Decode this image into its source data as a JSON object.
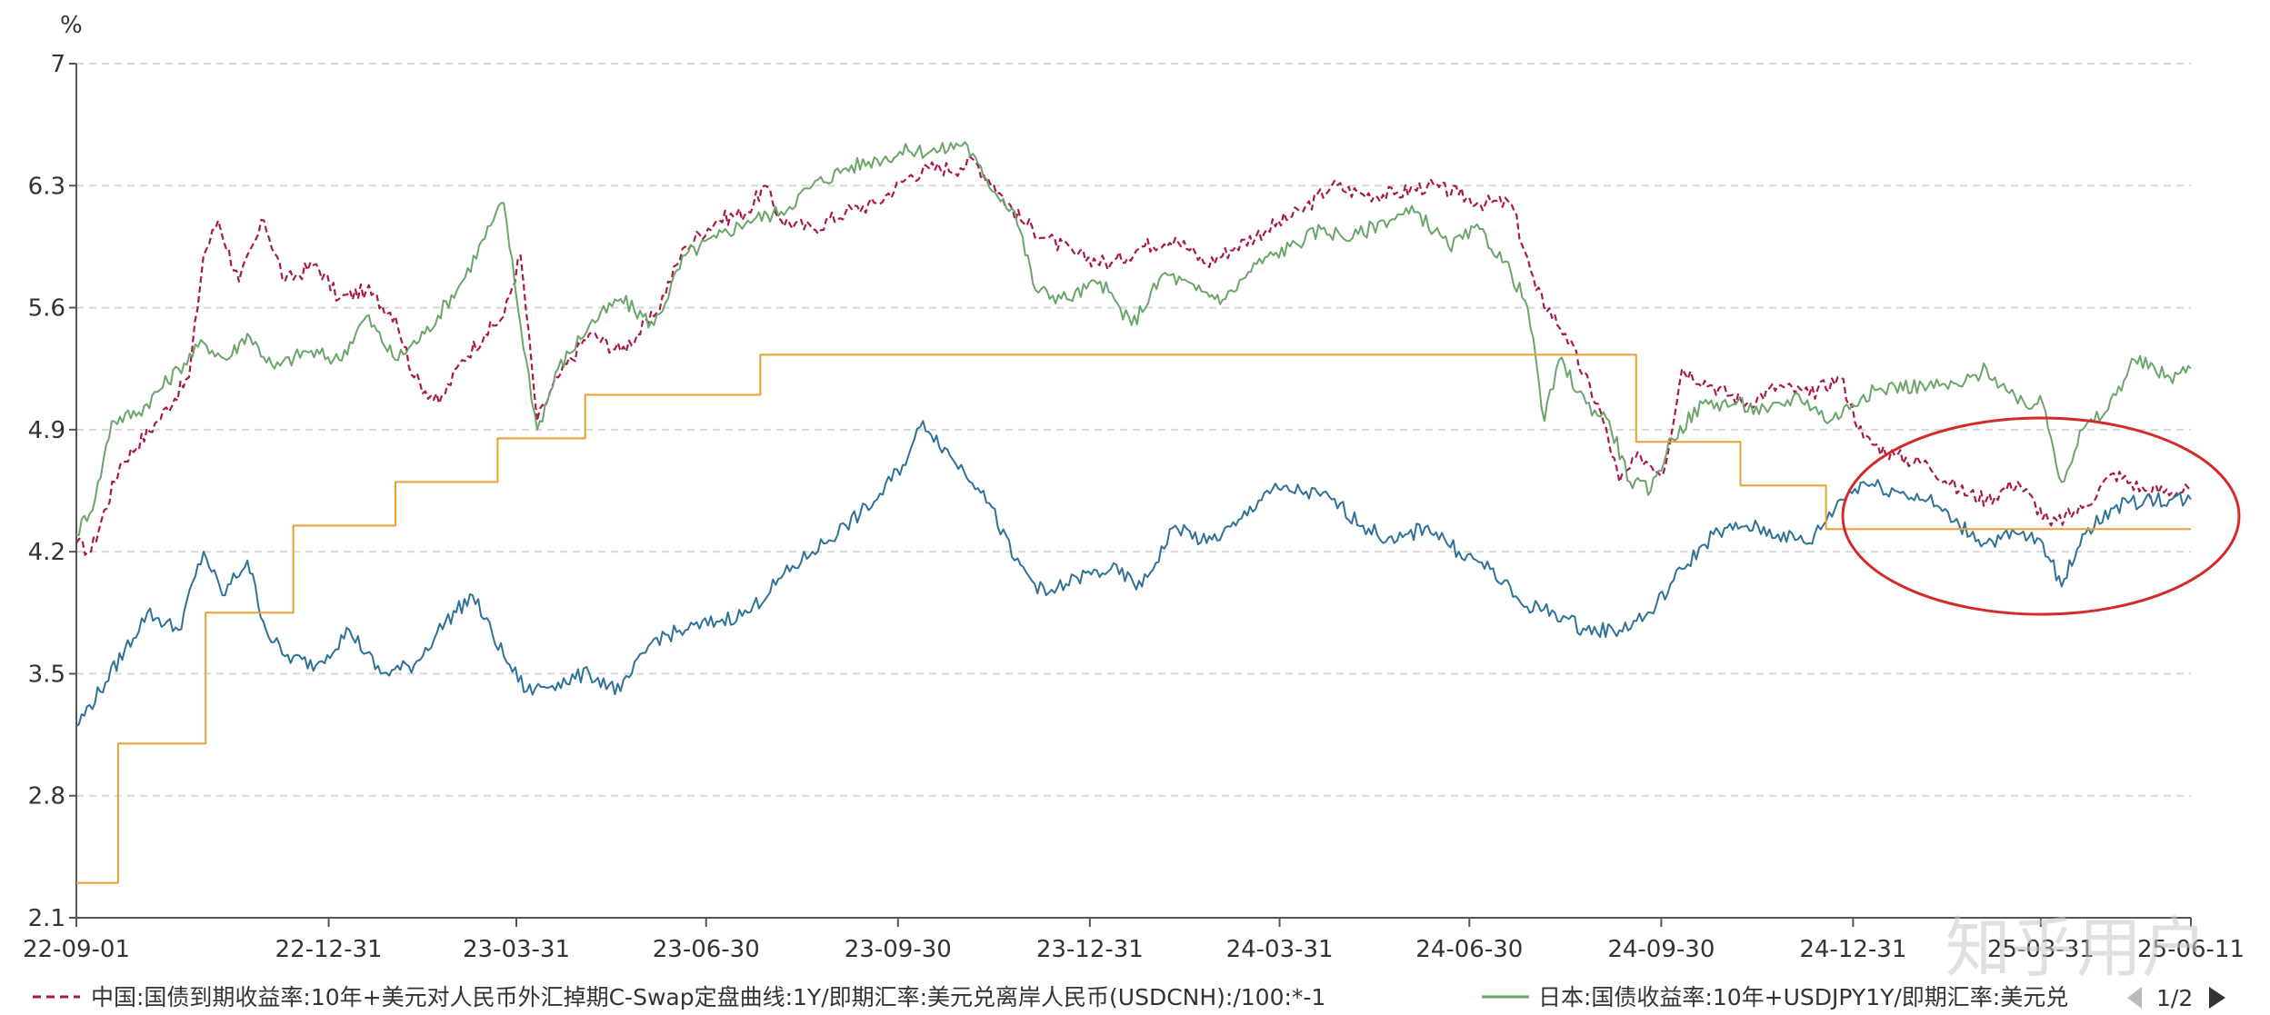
{
  "chart_data": {
    "type": "line",
    "unit": "%",
    "ylim": [
      2.1,
      7
    ],
    "y_ticks": [
      "2.1",
      "2.8",
      "3.5",
      "4.2",
      "4.9",
      "5.6",
      "6.3",
      "7"
    ],
    "x_ticks": [
      "22-09-01",
      "22-12-31",
      "23-03-31",
      "23-06-30",
      "23-09-30",
      "23-12-31",
      "24-03-31",
      "24-06-30",
      "24-09-30",
      "24-12-31",
      "25-03-31",
      "25-06-11"
    ],
    "x_range": [
      "2022-09-01",
      "2025-06-11"
    ],
    "grid": "horizontal dashed",
    "legend": {
      "placement": "bottom",
      "entries": [
        "中国:国债到期收益率:10年+美元对人民币外汇掉期C-Swap定盘曲线:1Y/即期汇率:美元兑离岸人民币(USDCNH):/100:*-1",
        "日本:国债收益率:10年+USDJPY1Y/即期汇率:美元兑"
      ],
      "page": "1/2"
    },
    "annotation": "red ellipse highlighting 2025-01 to 2025-06 region",
    "series": [
      {
        "name": "中国:国债到期收益率:10年+美元对人民币外汇掉期C-Swap定盘曲线:1Y/即期汇率:美元兑离岸人民币(USDCNH):/100:*-1",
        "color": "#a8194a",
        "style": "dashed",
        "points": [
          [
            "2022-09-01",
            4.25
          ],
          [
            "2022-09-08",
            4.2
          ],
          [
            "2022-09-22",
            4.7
          ],
          [
            "2022-10-10",
            4.95
          ],
          [
            "2022-10-25",
            5.2
          ],
          [
            "2022-11-01",
            5.9
          ],
          [
            "2022-11-08",
            6.1
          ],
          [
            "2022-11-18",
            5.75
          ],
          [
            "2022-11-30",
            6.1
          ],
          [
            "2022-12-10",
            5.75
          ],
          [
            "2022-12-25",
            5.85
          ],
          [
            "2023-01-05",
            5.65
          ],
          [
            "2023-01-18",
            5.7
          ],
          [
            "2023-02-01",
            5.55
          ],
          [
            "2023-02-10",
            5.2
          ],
          [
            "2023-02-22",
            5.05
          ],
          [
            "2023-03-05",
            5.3
          ],
          [
            "2023-03-16",
            5.45
          ],
          [
            "2023-03-25",
            5.55
          ],
          [
            "2023-04-02",
            5.9
          ],
          [
            "2023-04-10",
            4.95
          ],
          [
            "2023-04-20",
            5.2
          ],
          [
            "2023-05-05",
            5.45
          ],
          [
            "2023-05-20",
            5.35
          ],
          [
            "2023-06-05",
            5.55
          ],
          [
            "2023-06-20",
            5.95
          ],
          [
            "2023-07-05",
            6.1
          ],
          [
            "2023-07-20",
            6.15
          ],
          [
            "2023-07-28",
            6.3
          ],
          [
            "2023-08-05",
            6.1
          ],
          [
            "2023-08-20",
            6.05
          ],
          [
            "2023-09-05",
            6.15
          ],
          [
            "2023-09-20",
            6.2
          ],
          [
            "2023-10-05",
            6.35
          ],
          [
            "2023-10-15",
            6.4
          ],
          [
            "2023-10-30",
            6.4
          ],
          [
            "2023-11-05",
            6.45
          ],
          [
            "2023-11-15",
            6.3
          ],
          [
            "2023-11-28",
            6.1
          ],
          [
            "2023-12-10",
            6.0
          ],
          [
            "2023-12-25",
            5.9
          ],
          [
            "2024-01-10",
            5.85
          ],
          [
            "2024-01-25",
            5.95
          ],
          [
            "2024-02-10",
            6.0
          ],
          [
            "2024-02-25",
            5.85
          ],
          [
            "2024-03-10",
            5.95
          ],
          [
            "2024-03-25",
            6.05
          ],
          [
            "2024-04-10",
            6.15
          ],
          [
            "2024-04-25",
            6.3
          ],
          [
            "2024-05-10",
            6.25
          ],
          [
            "2024-05-25",
            6.25
          ],
          [
            "2024-06-10",
            6.3
          ],
          [
            "2024-06-25",
            6.25
          ],
          [
            "2024-07-05",
            6.2
          ],
          [
            "2024-07-20",
            6.2
          ],
          [
            "2024-08-01",
            5.7
          ],
          [
            "2024-08-15",
            5.45
          ],
          [
            "2024-09-01",
            5.0
          ],
          [
            "2024-09-10",
            4.6
          ],
          [
            "2024-09-20",
            4.75
          ],
          [
            "2024-10-01",
            4.65
          ],
          [
            "2024-10-10",
            5.25
          ],
          [
            "2024-10-25",
            5.15
          ],
          [
            "2024-11-10",
            5.05
          ],
          [
            "2024-11-25",
            5.15
          ],
          [
            "2024-12-10",
            5.1
          ],
          [
            "2024-12-25",
            5.2
          ],
          [
            "2025-01-05",
            4.85
          ],
          [
            "2025-01-20",
            4.75
          ],
          [
            "2025-02-05",
            4.7
          ],
          [
            "2025-02-20",
            4.55
          ],
          [
            "2025-03-05",
            4.5
          ],
          [
            "2025-03-20",
            4.6
          ],
          [
            "2025-04-05",
            4.35
          ],
          [
            "2025-04-20",
            4.45
          ],
          [
            "2025-05-05",
            4.65
          ],
          [
            "2025-05-20",
            4.55
          ],
          [
            "2025-06-11",
            4.55
          ]
        ]
      },
      {
        "name": "日本:国债收益率:10年+USDJPY1Y/即期汇率:美元兑",
        "color": "#6aa56a",
        "style": "solid",
        "points": [
          [
            "2022-09-01",
            4.3
          ],
          [
            "2022-09-10",
            4.5
          ],
          [
            "2022-09-18",
            4.95
          ],
          [
            "2022-10-01",
            5.0
          ],
          [
            "2022-10-20",
            5.25
          ],
          [
            "2022-11-01",
            5.4
          ],
          [
            "2022-11-12",
            5.3
          ],
          [
            "2022-11-22",
            5.45
          ],
          [
            "2022-12-05",
            5.25
          ],
          [
            "2022-12-20",
            5.35
          ],
          [
            "2023-01-05",
            5.3
          ],
          [
            "2023-01-18",
            5.55
          ],
          [
            "2023-02-01",
            5.3
          ],
          [
            "2023-02-15",
            5.45
          ],
          [
            "2023-03-05",
            5.75
          ],
          [
            "2023-03-20",
            6.1
          ],
          [
            "2023-03-25",
            6.2
          ],
          [
            "2023-04-02",
            5.5
          ],
          [
            "2023-04-10",
            4.9
          ],
          [
            "2023-04-20",
            5.25
          ],
          [
            "2023-05-05",
            5.5
          ],
          [
            "2023-05-20",
            5.65
          ],
          [
            "2023-06-05",
            5.5
          ],
          [
            "2023-06-20",
            5.9
          ],
          [
            "2023-07-05",
            6.0
          ],
          [
            "2023-07-20",
            6.1
          ],
          [
            "2023-08-05",
            6.15
          ],
          [
            "2023-08-20",
            6.3
          ],
          [
            "2023-09-05",
            6.4
          ],
          [
            "2023-09-20",
            6.45
          ],
          [
            "2023-10-05",
            6.5
          ],
          [
            "2023-10-20",
            6.5
          ],
          [
            "2023-11-01",
            6.55
          ],
          [
            "2023-11-10",
            6.35
          ],
          [
            "2023-11-25",
            6.15
          ],
          [
            "2023-12-05",
            5.7
          ],
          [
            "2023-12-20",
            5.65
          ],
          [
            "2024-01-05",
            5.75
          ],
          [
            "2024-01-20",
            5.5
          ],
          [
            "2024-02-05",
            5.8
          ],
          [
            "2024-02-20",
            5.7
          ],
          [
            "2024-03-05",
            5.65
          ],
          [
            "2024-03-20",
            5.85
          ],
          [
            "2024-04-05",
            5.95
          ],
          [
            "2024-04-20",
            6.05
          ],
          [
            "2024-05-05",
            6.0
          ],
          [
            "2024-05-20",
            6.1
          ],
          [
            "2024-06-05",
            6.15
          ],
          [
            "2024-06-20",
            5.95
          ],
          [
            "2024-07-05",
            6.05
          ],
          [
            "2024-07-20",
            5.8
          ],
          [
            "2024-07-28",
            5.6
          ],
          [
            "2024-08-05",
            4.95
          ],
          [
            "2024-08-12",
            5.3
          ],
          [
            "2024-08-25",
            5.05
          ],
          [
            "2024-09-05",
            4.95
          ],
          [
            "2024-09-15",
            4.6
          ],
          [
            "2024-09-25",
            4.55
          ],
          [
            "2024-10-05",
            4.85
          ],
          [
            "2024-10-20",
            5.05
          ],
          [
            "2024-11-05",
            5.05
          ],
          [
            "2024-11-20",
            5.0
          ],
          [
            "2024-12-05",
            5.1
          ],
          [
            "2024-12-20",
            4.95
          ],
          [
            "2025-01-05",
            5.1
          ],
          [
            "2025-01-20",
            5.15
          ],
          [
            "2025-02-05",
            5.15
          ],
          [
            "2025-02-20",
            5.15
          ],
          [
            "2025-03-05",
            5.25
          ],
          [
            "2025-03-20",
            5.05
          ],
          [
            "2025-04-01",
            5.05
          ],
          [
            "2025-04-10",
            4.6
          ],
          [
            "2025-04-20",
            4.9
          ],
          [
            "2025-05-01",
            5.0
          ],
          [
            "2025-05-15",
            5.3
          ],
          [
            "2025-06-01",
            5.2
          ],
          [
            "2025-06-11",
            5.25
          ]
        ]
      },
      {
        "name": "",
        "color": "#2e7297",
        "style": "solid",
        "points": [
          [
            "2022-09-01",
            3.2
          ],
          [
            "2022-09-15",
            3.45
          ],
          [
            "2022-10-05",
            3.85
          ],
          [
            "2022-10-20",
            3.75
          ],
          [
            "2022-11-01",
            4.2
          ],
          [
            "2022-11-10",
            3.95
          ],
          [
            "2022-11-22",
            4.15
          ],
          [
            "2022-12-01",
            3.75
          ],
          [
            "2022-12-10",
            3.6
          ],
          [
            "2022-12-25",
            3.55
          ],
          [
            "2023-01-10",
            3.75
          ],
          [
            "2023-01-25",
            3.5
          ],
          [
            "2023-02-10",
            3.55
          ],
          [
            "2023-02-25",
            3.8
          ],
          [
            "2023-03-10",
            3.95
          ],
          [
            "2023-03-25",
            3.6
          ],
          [
            "2023-04-05",
            3.4
          ],
          [
            "2023-04-20",
            3.45
          ],
          [
            "2023-05-05",
            3.5
          ],
          [
            "2023-05-20",
            3.4
          ],
          [
            "2023-06-05",
            3.7
          ],
          [
            "2023-06-20",
            3.75
          ],
          [
            "2023-07-05",
            3.8
          ],
          [
            "2023-07-20",
            3.85
          ],
          [
            "2023-08-05",
            4.05
          ],
          [
            "2023-08-20",
            4.2
          ],
          [
            "2023-09-05",
            4.35
          ],
          [
            "2023-09-20",
            4.5
          ],
          [
            "2023-10-05",
            4.75
          ],
          [
            "2023-10-12",
            4.95
          ],
          [
            "2023-10-25",
            4.75
          ],
          [
            "2023-11-10",
            4.55
          ],
          [
            "2023-11-25",
            4.15
          ],
          [
            "2023-12-10",
            3.95
          ],
          [
            "2023-12-25",
            4.05
          ],
          [
            "2024-01-10",
            4.1
          ],
          [
            "2024-01-25",
            4.0
          ],
          [
            "2024-02-10",
            4.35
          ],
          [
            "2024-02-25",
            4.25
          ],
          [
            "2024-03-10",
            4.35
          ],
          [
            "2024-03-25",
            4.55
          ],
          [
            "2024-04-10",
            4.55
          ],
          [
            "2024-04-25",
            4.5
          ],
          [
            "2024-05-10",
            4.35
          ],
          [
            "2024-05-25",
            4.25
          ],
          [
            "2024-06-10",
            4.35
          ],
          [
            "2024-06-25",
            4.2
          ],
          [
            "2024-07-10",
            4.1
          ],
          [
            "2024-07-25",
            3.9
          ],
          [
            "2024-08-10",
            3.85
          ],
          [
            "2024-08-25",
            3.75
          ],
          [
            "2024-09-10",
            3.75
          ],
          [
            "2024-09-25",
            3.85
          ],
          [
            "2024-10-10",
            4.1
          ],
          [
            "2024-10-25",
            4.3
          ],
          [
            "2024-11-10",
            4.35
          ],
          [
            "2024-11-25",
            4.3
          ],
          [
            "2024-12-10",
            4.25
          ],
          [
            "2024-12-25",
            4.5
          ],
          [
            "2025-01-05",
            4.6
          ],
          [
            "2025-01-20",
            4.55
          ],
          [
            "2025-02-05",
            4.5
          ],
          [
            "2025-02-20",
            4.35
          ],
          [
            "2025-03-05",
            4.25
          ],
          [
            "2025-03-20",
            4.3
          ],
          [
            "2025-04-01",
            4.25
          ],
          [
            "2025-04-10",
            4.0
          ],
          [
            "2025-04-20",
            4.3
          ],
          [
            "2025-05-05",
            4.45
          ],
          [
            "2025-05-20",
            4.5
          ],
          [
            "2025-06-11",
            4.5
          ]
        ]
      },
      {
        "name": "",
        "color": "#e8a030",
        "style": "step",
        "points": [
          [
            "2022-09-01",
            2.3
          ],
          [
            "2022-09-21",
            3.1
          ],
          [
            "2022-11-02",
            3.85
          ],
          [
            "2022-12-14",
            4.35
          ],
          [
            "2023-02-01",
            4.6
          ],
          [
            "2023-03-22",
            4.85
          ],
          [
            "2023-05-03",
            5.1
          ],
          [
            "2023-07-26",
            5.33
          ],
          [
            "2024-09-18",
            4.83
          ],
          [
            "2024-11-07",
            4.58
          ],
          [
            "2024-12-18",
            4.33
          ],
          [
            "2025-06-11",
            4.33
          ]
        ]
      }
    ]
  }
}
